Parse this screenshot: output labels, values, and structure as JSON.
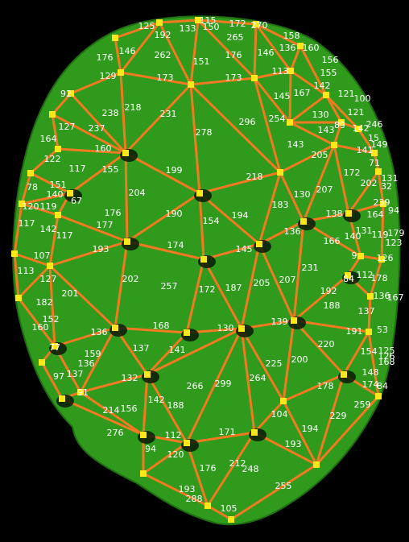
{
  "edge_labels": [
    "125",
    "192",
    "115",
    "133",
    "150",
    "172",
    "270",
    "265",
    "158",
    "136",
    "160",
    "176",
    "146",
    "262",
    "151",
    "176",
    "146",
    "156",
    "129",
    "173",
    "173",
    "113",
    "155",
    "142",
    "92",
    "238",
    "218",
    "231",
    "145",
    "167",
    "121",
    "100",
    "127",
    "237",
    "278",
    "296",
    "254",
    "130",
    "89",
    "121",
    "143",
    "246",
    "142",
    "164",
    "160",
    "143",
    "205",
    "15",
    "149",
    "141",
    "122",
    "117",
    "155",
    "199",
    "218",
    "172",
    "71",
    "131",
    "78",
    "151",
    "204",
    "130",
    "207",
    "202",
    "32",
    "140",
    "67",
    "183",
    "120",
    "119",
    "176",
    "190",
    "154",
    "194",
    "138",
    "164",
    "239",
    "94",
    "117",
    "142",
    "177",
    "117",
    "136",
    "166",
    "140",
    "131",
    "179",
    "123",
    "193",
    "174",
    "145",
    "119",
    "107",
    "127",
    "113",
    "231",
    "9",
    "126",
    "202",
    "257",
    "172",
    "187",
    "205",
    "207",
    "84",
    "112",
    "178",
    "201",
    "192",
    "188",
    "136",
    "167",
    "182",
    "152",
    "137",
    "160",
    "136",
    "168",
    "130",
    "139",
    "191",
    "53",
    "77",
    "137",
    "141",
    "220",
    "154",
    "125",
    "126",
    "168",
    "159",
    "225",
    "200",
    "136",
    "148",
    "97",
    "137",
    "132",
    "266",
    "299",
    "264",
    "178",
    "174",
    "84",
    "91",
    "142",
    "188",
    "104",
    "214",
    "156",
    "229",
    "259",
    "276",
    "112",
    "171",
    "194",
    "94",
    "120",
    "193",
    "176",
    "212",
    "248",
    "193",
    "288",
    "255",
    "105"
  ]
}
